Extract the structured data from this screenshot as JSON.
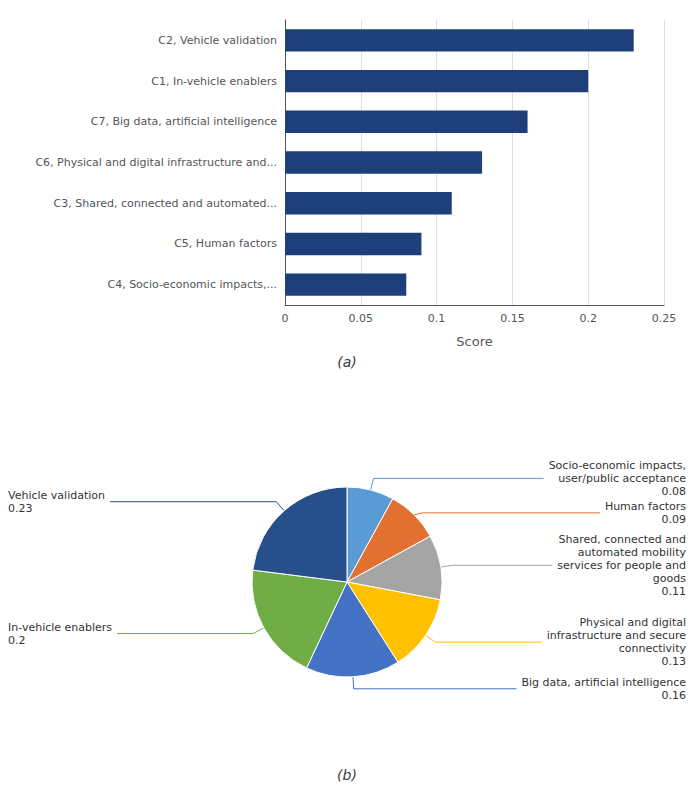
{
  "chart_data": [
    {
      "type": "bar",
      "orientation": "horizontal",
      "categories": [
        "C2, Vehicle validation",
        "C1, In-vehicle enablers",
        "C7, Big data, artificial intelligence",
        "C6, Physical and digital infrastructure and...",
        "C3, Shared, connected and automated...",
        "C5, Human factors",
        "C4, Socio-economic impacts,..."
      ],
      "values": [
        0.23,
        0.2,
        0.16,
        0.13,
        0.11,
        0.09,
        0.08
      ],
      "color": "#1F3F7A",
      "xlabel": "Score",
      "xlim": [
        0,
        0.25
      ],
      "xticks": [
        0,
        0.05,
        0.1,
        0.15,
        0.2,
        0.25
      ],
      "grid": true,
      "annotations": [
        "(a)"
      ]
    },
    {
      "type": "pie",
      "categories": [
        "Socio-economic impacts,\nuser/public acceptance",
        "Human factors",
        "Shared, connected and\nautomated mobility\nservices for people and\ngoods",
        "Physical and digital\ninfrastructure and secure\nconnectivity",
        "Big data, artificial intelligence",
        "In-vehicle enablers",
        "Vehicle validation"
      ],
      "values": [
        0.08,
        0.09,
        0.11,
        0.13,
        0.16,
        0.2,
        0.23
      ],
      "colors": [
        "#5B9BD5",
        "#E27031",
        "#A5A5A5",
        "#FFC000",
        "#4472C4",
        "#70AD47",
        "#264F8C"
      ],
      "data_labels": true,
      "annotations": [
        "(b)"
      ]
    }
  ]
}
